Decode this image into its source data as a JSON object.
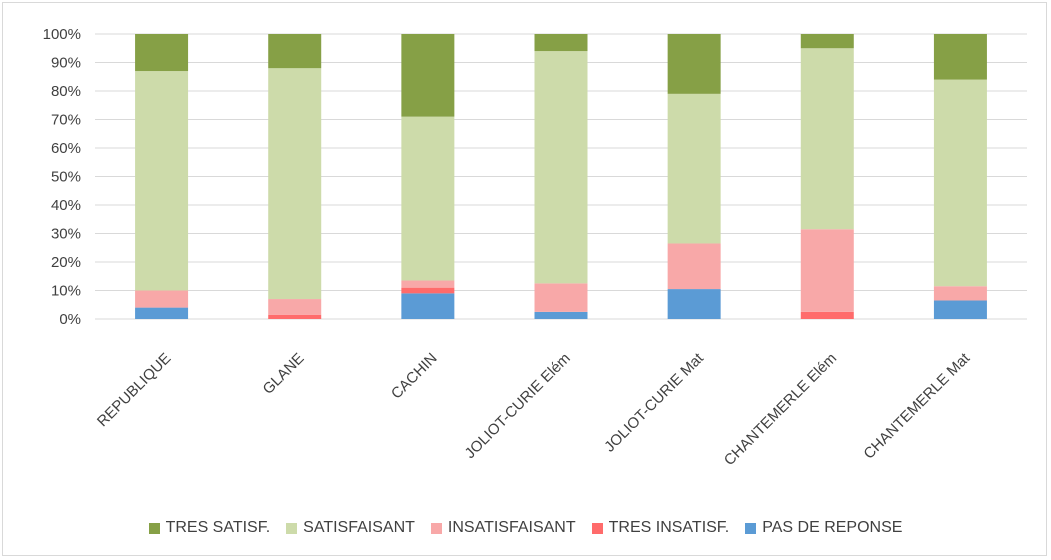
{
  "chart_data": {
    "type": "bar",
    "stacked": true,
    "percent": true,
    "categories": [
      "REPUBLIQUE",
      "GLANE",
      "CACHIN",
      "JOLIOT-CURIE Elém",
      "JOLIOT-CURIE Mat",
      "CHANTEMERLE Elém",
      "CHANTEMERLE Mat"
    ],
    "series": [
      {
        "name": "PAS DE REPONSE",
        "color": "#5b9bd5",
        "values": [
          4,
          0,
          9,
          2.5,
          10.5,
          0,
          6.5
        ]
      },
      {
        "name": "TRES INSATISF.",
        "color": "#ff6b6b",
        "values": [
          0,
          1.5,
          2,
          0,
          0,
          2.5,
          0
        ]
      },
      {
        "name": "INSATISFAISANT",
        "color": "#f8a8a8",
        "values": [
          6,
          5.5,
          2.5,
          10,
          16,
          29,
          5
        ]
      },
      {
        "name": "SATISFAISANT",
        "color": "#cddbaa",
        "values": [
          77,
          81,
          57.5,
          81.5,
          52.5,
          63.5,
          72.5
        ]
      },
      {
        "name": "TRES SATISF.",
        "color": "#86a046",
        "values": [
          13,
          12,
          29,
          6,
          21,
          5,
          16
        ]
      }
    ],
    "legend_order": [
      "TRES SATISF.",
      "SATISFAISANT",
      "INSATISFAISANT",
      "TRES INSATISF.",
      "PAS DE REPONSE"
    ],
    "y_ticks": [
      "0%",
      "10%",
      "20%",
      "30%",
      "40%",
      "50%",
      "60%",
      "70%",
      "80%",
      "90%",
      "100%"
    ],
    "ylim": [
      0,
      100
    ],
    "grid": true,
    "legend_position": "bottom",
    "title": "",
    "xlabel": "",
    "ylabel": ""
  }
}
